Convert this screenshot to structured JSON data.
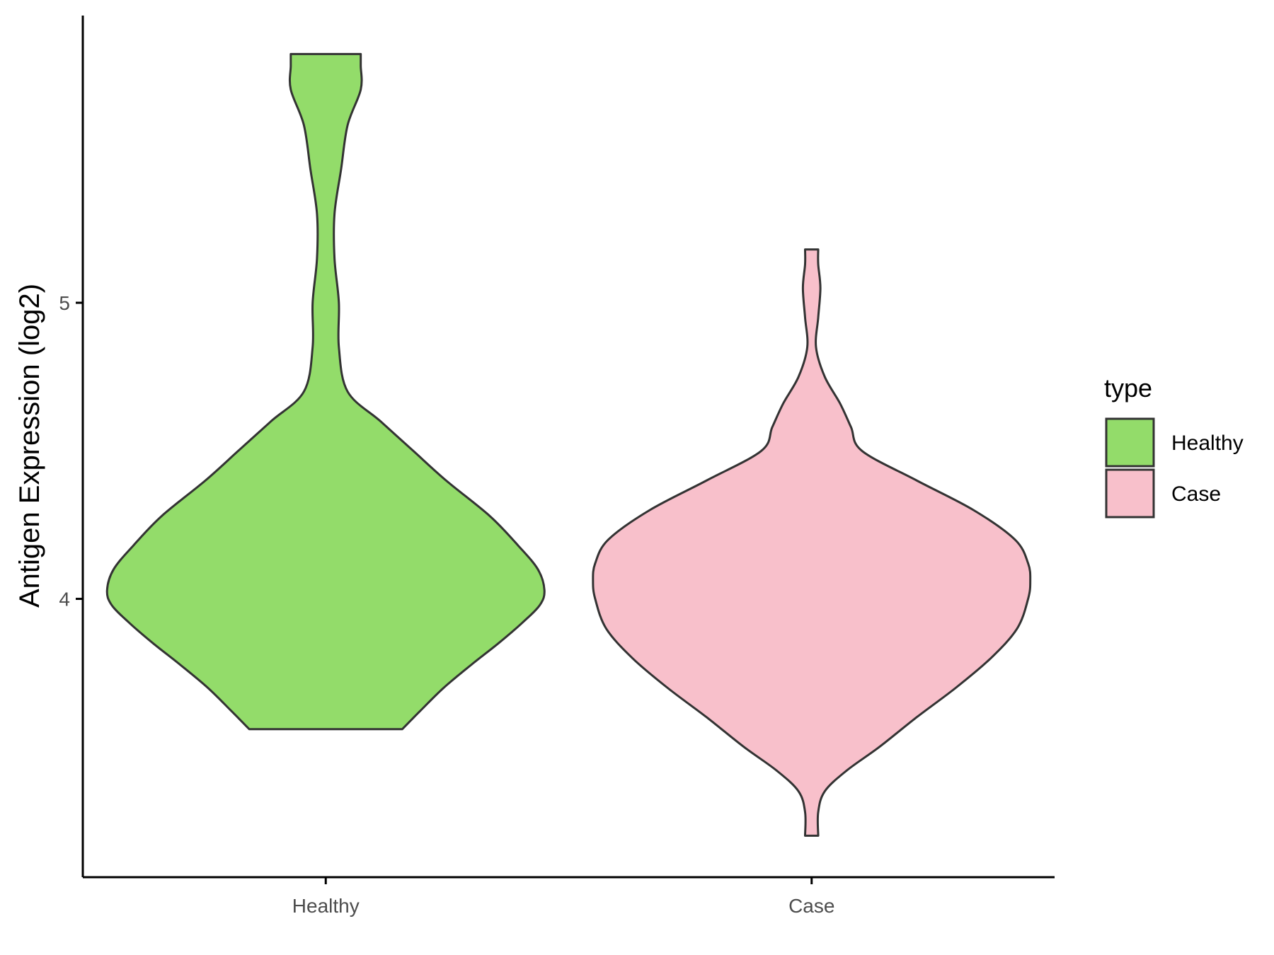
{
  "chart_data": {
    "type": "violin",
    "ylabel": "Antigen Expression (log2)",
    "xlabel": "",
    "categories": [
      "Healthy",
      "Case"
    ],
    "y_ticks": [
      4,
      5
    ],
    "ylim": [
      3.06,
      5.97
    ],
    "grid": false,
    "legend": {
      "title": "type",
      "position": "right",
      "entries": [
        {
          "label": "Healthy",
          "color": "#93DC6A"
        },
        {
          "label": "Case",
          "color": "#F8C0CB"
        }
      ]
    },
    "series": [
      {
        "category": "Healthy",
        "color": "#93DC6A",
        "min": 3.56,
        "max": 5.84,
        "density": [
          [
            3.56,
            0.35
          ],
          [
            3.62,
            0.43
          ],
          [
            3.7,
            0.54
          ],
          [
            3.78,
            0.67
          ],
          [
            3.85,
            0.79
          ],
          [
            3.92,
            0.9
          ],
          [
            3.98,
            0.98
          ],
          [
            4.03,
            1.0
          ],
          [
            4.1,
            0.97
          ],
          [
            4.18,
            0.88
          ],
          [
            4.28,
            0.75
          ],
          [
            4.4,
            0.55
          ],
          [
            4.5,
            0.4
          ],
          [
            4.6,
            0.25
          ],
          [
            4.7,
            0.1
          ],
          [
            4.85,
            0.06
          ],
          [
            5.0,
            0.06
          ],
          [
            5.15,
            0.04
          ],
          [
            5.3,
            0.04
          ],
          [
            5.45,
            0.07
          ],
          [
            5.6,
            0.1
          ],
          [
            5.72,
            0.16
          ],
          [
            5.8,
            0.16
          ],
          [
            5.84,
            0.16
          ]
        ]
      },
      {
        "category": "Case",
        "color": "#F8C0CB",
        "min": 3.2,
        "max": 5.18,
        "density": [
          [
            3.2,
            0.03
          ],
          [
            3.28,
            0.03
          ],
          [
            3.35,
            0.06
          ],
          [
            3.42,
            0.16
          ],
          [
            3.5,
            0.31
          ],
          [
            3.6,
            0.48
          ],
          [
            3.7,
            0.66
          ],
          [
            3.8,
            0.82
          ],
          [
            3.9,
            0.94
          ],
          [
            4.0,
            0.99
          ],
          [
            4.06,
            1.0
          ],
          [
            4.12,
            0.99
          ],
          [
            4.2,
            0.93
          ],
          [
            4.3,
            0.74
          ],
          [
            4.4,
            0.48
          ],
          [
            4.5,
            0.23
          ],
          [
            4.58,
            0.18
          ],
          [
            4.66,
            0.13
          ],
          [
            4.75,
            0.06
          ],
          [
            4.85,
            0.02
          ],
          [
            4.95,
            0.03
          ],
          [
            5.05,
            0.04
          ],
          [
            5.13,
            0.03
          ],
          [
            5.18,
            0.03
          ]
        ]
      }
    ]
  }
}
